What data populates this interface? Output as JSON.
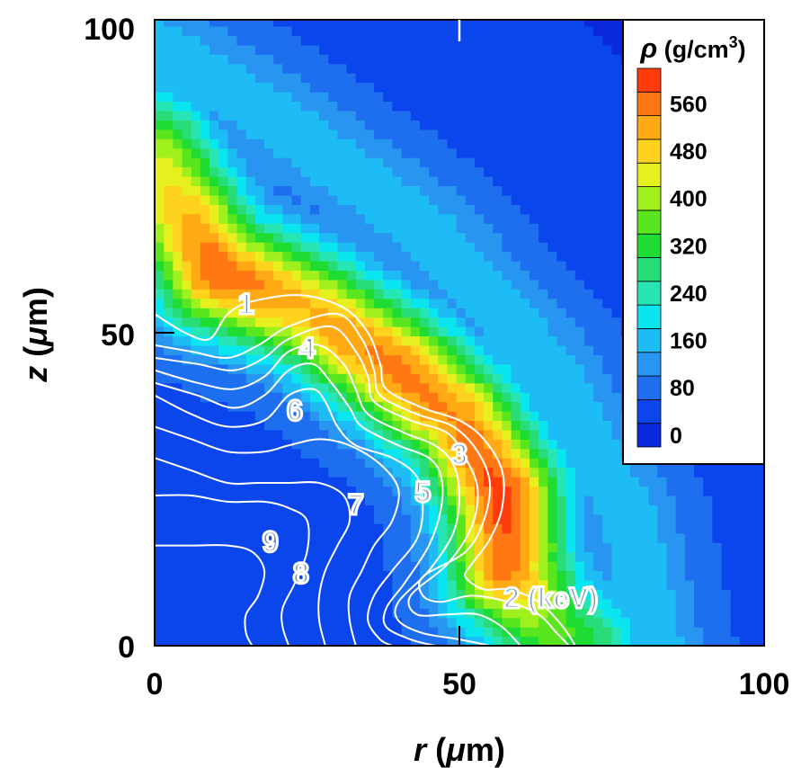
{
  "chart_data": {
    "type": "heatmap",
    "title": "",
    "xlabel": {
      "italic": "r",
      "rest": " (",
      "mu": "μ",
      "unit": "m)"
    },
    "ylabel": {
      "italic": "z",
      "rest": " (",
      "mu": "μ",
      "unit": "m)"
    },
    "xlim": [
      0,
      100
    ],
    "ylim": [
      0,
      100
    ],
    "x_ticks": [
      0,
      50,
      100
    ],
    "y_ticks": [
      0,
      50,
      100
    ],
    "grid": false,
    "colorbar": {
      "title_symbol": "ρ",
      "title_unit": " (g/cm",
      "title_exp": "3",
      "title_close": ")",
      "min": 0,
      "max": 640,
      "step": 40,
      "labels": [
        0,
        80,
        160,
        240,
        320,
        400,
        480,
        560
      ],
      "colors": [
        "#0a28dc",
        "#0a46ec",
        "#1e6ef0",
        "#2896f0",
        "#1ebcf4",
        "#0ae6f0",
        "#28e6b4",
        "#28dc78",
        "#1edc32",
        "#5ae61e",
        "#a0f01e",
        "#e6f01e",
        "#ffd21e",
        "#ffaa14",
        "#ff7814",
        "#ff3c0a"
      ],
      "placement": "top-right"
    },
    "density_field": {
      "description": "mass density rho in g/cm3 (color fill)",
      "background": 70,
      "ridge_points": [
        {
          "r": 0,
          "z": 78,
          "rho": 440
        },
        {
          "r": 10,
          "z": 60,
          "rho": 600
        },
        {
          "r": 25,
          "z": 54,
          "rho": 520
        },
        {
          "r": 40,
          "z": 44,
          "rho": 580
        },
        {
          "r": 50,
          "z": 36,
          "rho": 560
        },
        {
          "r": 57,
          "z": 24,
          "rho": 620
        },
        {
          "r": 58,
          "z": 12,
          "rho": 580
        },
        {
          "r": 64,
          "z": 4,
          "rho": 400
        },
        {
          "r": 70,
          "z": 0,
          "rho": 340
        }
      ],
      "outer_points": [
        {
          "r": 0,
          "z": 96,
          "rho": 200
        },
        {
          "r": 20,
          "z": 84,
          "rho": 200
        },
        {
          "r": 45,
          "z": 66,
          "rho": 200
        },
        {
          "r": 65,
          "z": 44,
          "rho": 200
        },
        {
          "r": 78,
          "z": 20,
          "rho": 200
        },
        {
          "r": 82,
          "z": 0,
          "rho": 200
        }
      ]
    },
    "contours": {
      "quantity": "temperature",
      "unit": "keV",
      "levels": [
        {
          "value": 1,
          "label": "1",
          "points": [
            [
              0,
              53
            ],
            [
              5,
              50
            ],
            [
              9,
              49
            ],
            [
              12,
              53
            ],
            [
              16,
              55
            ],
            [
              24,
              56
            ],
            [
              31,
              54
            ],
            [
              35,
              50
            ],
            [
              37,
              45
            ],
            [
              38,
              41
            ],
            [
              44,
              38
            ],
            [
              50,
              36
            ],
            [
              54,
              33
            ],
            [
              57,
              28
            ],
            [
              57,
              22
            ],
            [
              55,
              17
            ],
            [
              52,
              13
            ],
            [
              51,
              11
            ],
            [
              54,
              9
            ],
            [
              58,
              9
            ],
            [
              63,
              7
            ],
            [
              67,
              3
            ],
            [
              69,
              0
            ]
          ]
        },
        {
          "value": 2,
          "label": "2 (keV)",
          "points": [
            [
              0,
              48
            ],
            [
              6,
              47
            ],
            [
              12,
              46
            ],
            [
              17,
              48
            ],
            [
              22,
              51
            ],
            [
              30,
              53
            ],
            [
              34,
              49
            ],
            [
              36,
              44
            ],
            [
              37,
              40
            ],
            [
              43,
              37
            ],
            [
              49,
              35
            ],
            [
              53,
              31
            ],
            [
              55,
              26
            ],
            [
              54,
              20
            ],
            [
              51,
              15
            ],
            [
              44,
              11
            ],
            [
              44,
              8
            ],
            [
              47,
              7
            ],
            [
              52,
              8
            ],
            [
              58,
              7
            ],
            [
              63,
              5
            ],
            [
              66,
              2
            ],
            [
              68,
              0
            ]
          ]
        },
        {
          "value": 3,
          "label": "3",
          "points": [
            [
              0,
              46
            ],
            [
              7,
              45
            ],
            [
              13,
              44
            ],
            [
              18,
              46
            ],
            [
              22,
              49
            ],
            [
              29,
              51
            ],
            [
              33,
              47
            ],
            [
              35,
              43
            ],
            [
              36,
              39
            ],
            [
              42,
              36
            ],
            [
              48,
              34
            ],
            [
              51,
              30
            ],
            [
              53,
              25
            ],
            [
              52,
              19
            ],
            [
              48,
              13
            ],
            [
              42,
              8
            ],
            [
              43,
              5
            ],
            [
              48,
              5
            ],
            [
              53,
              5
            ],
            [
              57,
              3
            ],
            [
              60,
              0
            ]
          ]
        },
        {
          "value": 4,
          "label": "4",
          "points": [
            [
              0,
              44
            ],
            [
              7,
              42
            ],
            [
              13,
              41
            ],
            [
              18,
              43
            ],
            [
              22,
              47
            ],
            [
              27,
              48
            ],
            [
              31,
              45
            ],
            [
              33,
              41
            ],
            [
              35,
              37
            ],
            [
              41,
              34
            ],
            [
              46,
              32
            ],
            [
              49,
              29
            ],
            [
              50,
              24
            ],
            [
              49,
              18
            ],
            [
              45,
              12
            ],
            [
              40,
              7
            ],
            [
              40,
              4
            ],
            [
              44,
              2
            ],
            [
              50,
              1
            ],
            [
              55,
              0
            ]
          ]
        },
        {
          "value": 5,
          "label": "5",
          "points": [
            [
              0,
              42
            ],
            [
              7,
              40
            ],
            [
              13,
              38
            ],
            [
              18,
              40
            ],
            [
              22,
              44
            ],
            [
              26,
              45
            ],
            [
              29,
              42
            ],
            [
              32,
              38
            ],
            [
              34,
              35
            ],
            [
              40,
              32
            ],
            [
              45,
              30
            ],
            [
              47,
              27
            ],
            [
              47,
              22
            ],
            [
              45,
              16
            ],
            [
              41,
              10
            ],
            [
              38,
              6
            ],
            [
              38,
              3
            ],
            [
              42,
              1
            ],
            [
              46,
              0
            ]
          ]
        },
        {
          "value": 6,
          "label": "6",
          "points": [
            [
              0,
              40
            ],
            [
              6,
              37
            ],
            [
              12,
              35
            ],
            [
              18,
              36
            ],
            [
              22,
              40
            ],
            [
              26,
              41
            ],
            [
              28,
              39
            ],
            [
              30,
              35
            ],
            [
              33,
              32
            ],
            [
              39,
              30
            ],
            [
              43,
              27
            ],
            [
              44,
              22
            ],
            [
              43,
              17
            ],
            [
              39,
              12
            ],
            [
              36,
              8
            ],
            [
              35,
              4
            ],
            [
              37,
              1
            ],
            [
              39,
              0
            ]
          ]
        },
        {
          "value": 7,
          "label": "7",
          "points": [
            [
              0,
              35
            ],
            [
              6,
              33
            ],
            [
              12,
              31
            ],
            [
              18,
              31
            ],
            [
              22,
              32
            ],
            [
              27,
              33
            ],
            [
              32,
              32
            ],
            [
              37,
              29
            ],
            [
              40,
              25
            ],
            [
              39,
              20
            ],
            [
              36,
              16
            ],
            [
              34,
              12
            ],
            [
              32,
              8
            ],
            [
              32,
              4
            ],
            [
              33,
              0
            ]
          ]
        },
        {
          "value": 8,
          "label": "8",
          "points": [
            [
              0,
              30
            ],
            [
              6,
              28
            ],
            [
              12,
              26
            ],
            [
              17,
              26
            ],
            [
              22,
              26
            ],
            [
              27,
              26
            ],
            [
              31,
              24
            ],
            [
              32,
              20
            ],
            [
              30,
              16
            ],
            [
              28,
              12
            ],
            [
              27,
              8
            ],
            [
              27,
              4
            ],
            [
              28,
              0
            ]
          ]
        },
        {
          "value": 9,
          "label": "9",
          "points": [
            [
              0,
              24
            ],
            [
              6,
              24
            ],
            [
              12,
              23
            ],
            [
              18,
              23
            ],
            [
              22,
              22
            ],
            [
              25,
              20
            ],
            [
              25,
              15
            ],
            [
              23,
              10
            ],
            [
              21,
              6
            ],
            [
              21,
              3
            ],
            [
              22,
              0
            ]
          ]
        },
        {
          "value": 10,
          "label": "",
          "points": [
            [
              0,
              16
            ],
            [
              6,
              16
            ],
            [
              12,
              16
            ],
            [
              16,
              15
            ],
            [
              18,
              12
            ],
            [
              17,
              8
            ],
            [
              15,
              5
            ],
            [
              15,
              2
            ],
            [
              16,
              0
            ]
          ]
        }
      ],
      "label_positions": [
        {
          "text": "1",
          "r": 15,
          "z": 53
        },
        {
          "text": "4",
          "r": 25,
          "z": 46
        },
        {
          "text": "6",
          "r": 23,
          "z": 36
        },
        {
          "text": "3",
          "r": 50,
          "z": 29
        },
        {
          "text": "5",
          "r": 44,
          "z": 23
        },
        {
          "text": "7",
          "r": 33,
          "z": 21
        },
        {
          "text": "9",
          "r": 19,
          "z": 15
        },
        {
          "text": "8",
          "r": 24,
          "z": 10
        },
        {
          "text": "2 (keV)",
          "r": 65,
          "z": 6
        }
      ]
    }
  }
}
